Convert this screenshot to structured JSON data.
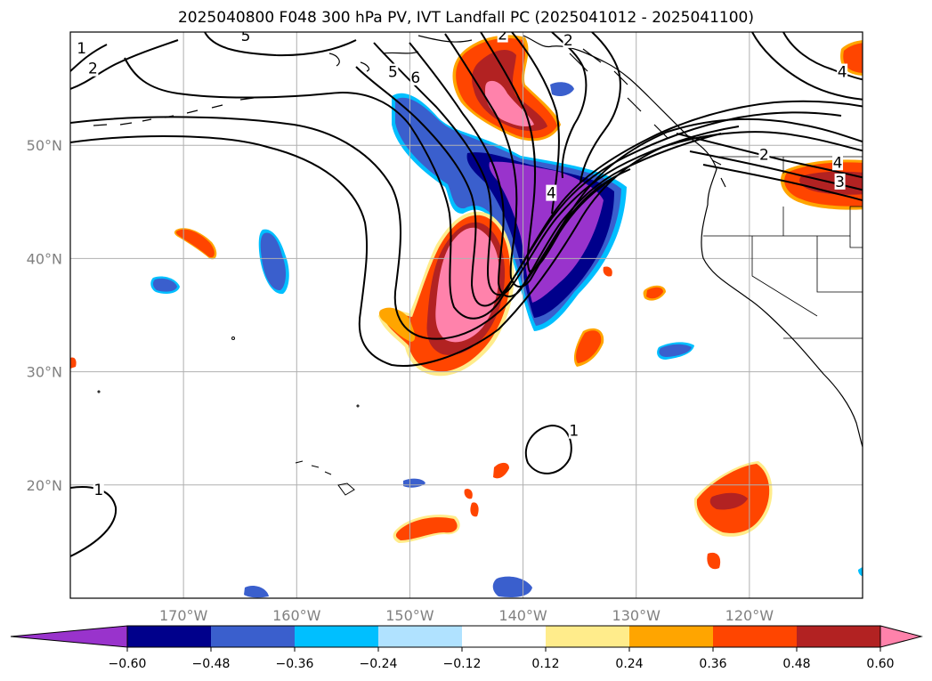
{
  "title": "2025040800 F048 300 hPa PV, IVT Landfall PC (2025041012 - 2025041100)",
  "map": {
    "lon_range": [
      -180,
      -110
    ],
    "lat_range": [
      10,
      60
    ],
    "lon_ticks": [
      {
        "lon": -170,
        "label": "170°W"
      },
      {
        "lon": -160,
        "label": "160°W"
      },
      {
        "lon": -150,
        "label": "150°W"
      },
      {
        "lon": -140,
        "label": "140°W"
      },
      {
        "lon": -130,
        "label": "130°W"
      },
      {
        "lon": -120,
        "label": "120°W"
      }
    ],
    "lat_ticks": [
      {
        "lat": 20,
        "label": "20°N"
      },
      {
        "lat": 30,
        "label": "30°N"
      },
      {
        "lat": 40,
        "label": "40°N"
      },
      {
        "lat": 50,
        "label": "50°N"
      }
    ],
    "grid": true,
    "contour_labels": [
      {
        "text": "1",
        "lon": -179,
        "lat": 58.6
      },
      {
        "text": "2",
        "lon": -178,
        "lat": 56.8
      },
      {
        "text": "5",
        "lon": -164.5,
        "lat": 59.7
      },
      {
        "text": "5",
        "lon": -151.5,
        "lat": 56.5
      },
      {
        "text": "6",
        "lon": -149.5,
        "lat": 56.0
      },
      {
        "text": "4",
        "lon": -137.5,
        "lat": 45.8
      },
      {
        "text": "2",
        "lon": -141.8,
        "lat": 59.8
      },
      {
        "text": "2",
        "lon": -136.0,
        "lat": 59.3
      },
      {
        "text": "2",
        "lon": -118.7,
        "lat": 49.2
      },
      {
        "text": "4",
        "lon": -112.2,
        "lat": 48.5
      },
      {
        "text": "3",
        "lon": -112.0,
        "lat": 46.8
      },
      {
        "text": "4",
        "lon": -111.8,
        "lat": 56.5
      },
      {
        "text": "1",
        "lon": -135.5,
        "lat": 24.8
      },
      {
        "text": "1",
        "lon": -177.5,
        "lat": 19.6
      }
    ]
  },
  "colorbar": {
    "colors": [
      "#9933cc",
      "#00008b",
      "#3a5fcd",
      "#00bfff",
      "#b0e2ff",
      "#ffffff",
      "#ffec8b",
      "#ffa500",
      "#ff4500",
      "#b22222",
      "#ff82ab"
    ],
    "tick_labels": [
      "−0.60",
      "−0.48",
      "−0.36",
      "−0.24",
      "−0.12",
      "0.12",
      "0.24",
      "0.36",
      "0.48",
      "0.60"
    ]
  }
}
